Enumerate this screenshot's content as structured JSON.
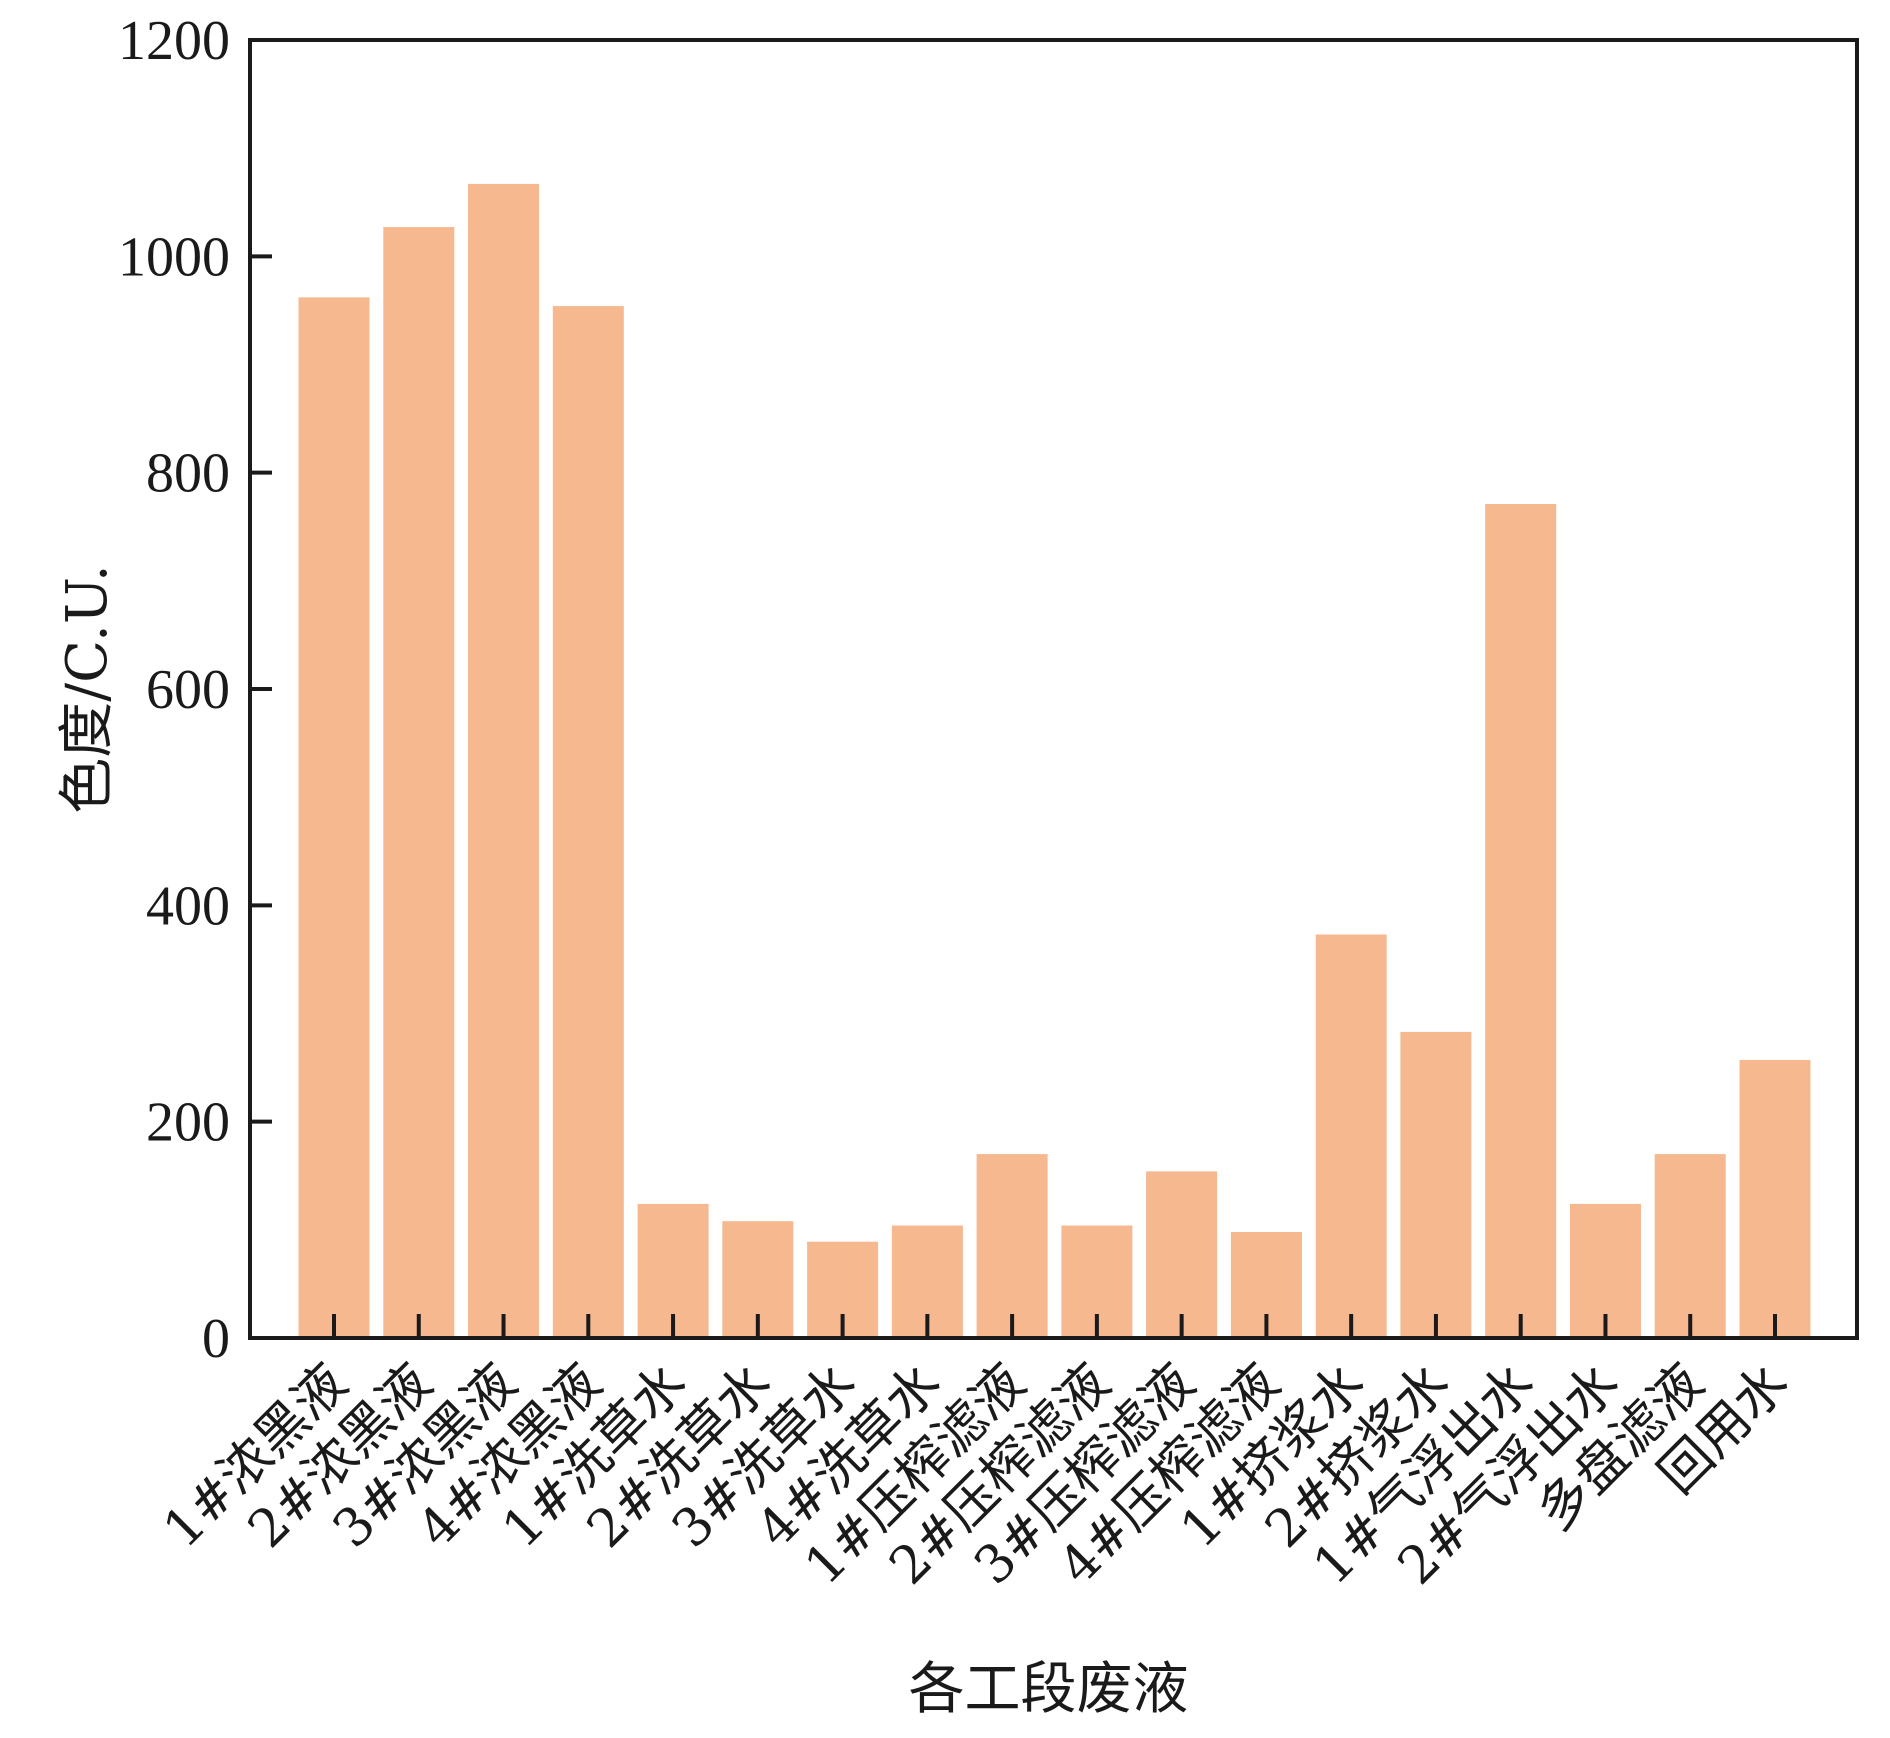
{
  "chart_data": {
    "type": "bar",
    "title": "",
    "xlabel": "各工段废液",
    "ylabel": "色度/C.U.",
    "ylim": [
      0,
      1200
    ],
    "yticks": [
      0,
      200,
      400,
      600,
      800,
      1000,
      1200
    ],
    "grid": false,
    "bar_color": "#f5b88f",
    "categories": [
      "1#浓黑液",
      "2#浓黑液",
      "3#浓黑液",
      "4#浓黑液",
      "1#洗草水",
      "2#洗草水",
      "3#洗草水",
      "4#洗草水",
      "1#压榨滤液",
      "2#压榨滤液",
      "3#压榨滤液",
      "4#压榨滤液",
      "1#挤浆水",
      "2#挤浆水",
      "1#气浮出水",
      "2#气浮出水",
      "多盘滤液",
      "回用水"
    ],
    "values": [
      962,
      1027,
      1067,
      954,
      124,
      108,
      89,
      104,
      170,
      104,
      154,
      98,
      373,
      283,
      771,
      124,
      170,
      257
    ]
  }
}
